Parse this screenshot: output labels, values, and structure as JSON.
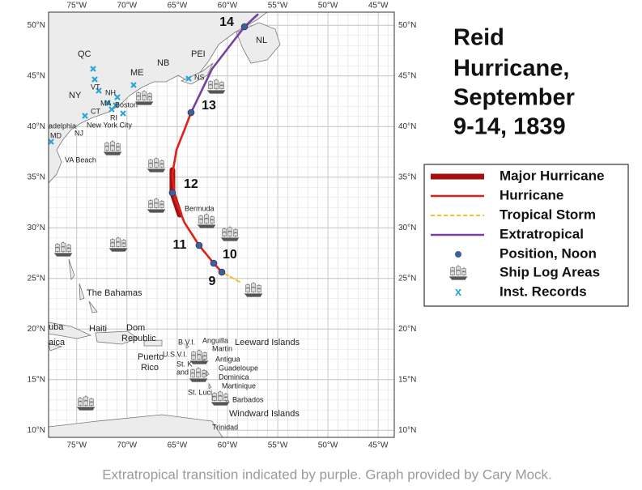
{
  "title_lines": [
    "Reid",
    "Hurricane,",
    "September",
    "9-14, 1839"
  ],
  "caption": "Extratropical transition indicated by purple. Graph provided by Cary Mock.",
  "map": {
    "lon_range": [
      -77.8,
      -43.4
    ],
    "lat_range": [
      9.3,
      51.3
    ],
    "lon_ticks": [
      {
        "value": -75,
        "label": "75°W"
      },
      {
        "value": -70,
        "label": "70°W"
      },
      {
        "value": -65,
        "label": "65°W"
      },
      {
        "value": -60,
        "label": "60°W"
      },
      {
        "value": -55,
        "label": "55°W"
      },
      {
        "value": -50,
        "label": "50°W"
      },
      {
        "value": -45,
        "label": "45°W"
      }
    ],
    "lat_ticks": [
      {
        "value": 50,
        "label": "50°N"
      },
      {
        "value": 45,
        "label": "45°N"
      },
      {
        "value": 40,
        "label": "40°N"
      },
      {
        "value": 35,
        "label": "35°N"
      },
      {
        "value": 30,
        "label": "30°N"
      },
      {
        "value": 25,
        "label": "25°N"
      },
      {
        "value": 20,
        "label": "20°N"
      },
      {
        "value": 15,
        "label": "15°N"
      },
      {
        "value": 10,
        "label": "10°N"
      }
    ],
    "grid": true
  },
  "places": [
    "QC",
    "VT",
    "NH",
    "ME",
    "NB",
    "PEI",
    "NS",
    "NL",
    "NY",
    "MA",
    "CT",
    "RI",
    "NJ",
    "MD",
    "Boston",
    "New York City",
    "adelphia",
    "VA Beach",
    "Bermuda",
    "The Bahamas",
    "uba",
    "Haiti",
    "Dom",
    "Republic",
    "Puerto",
    "Rico",
    "aica",
    "B.V.I.",
    "U.S.V.I.",
    "St. K",
    "and",
    "Anguilla",
    "Martin",
    "Antigua",
    "Guadeloupe",
    "Dominica",
    "Martinique",
    "St. Luci",
    "Barbados",
    "Trinidad",
    "Leeward Islands",
    "Windward Islands"
  ],
  "track": {
    "segments": [
      {
        "name": "Major Hurricane",
        "color": "#a50f0f",
        "line_style": "thick",
        "lon": [
          -65.48,
          -65.48,
          -64.75
        ],
        "lat": [
          35.7,
          33.46,
          31.3
        ]
      },
      {
        "name": "Hurricane",
        "color": "#e0201b",
        "line_style": "solid",
        "lon": [
          -60.56,
          -61.37,
          -62.82,
          -64.27,
          -65.23,
          -65.48,
          -65.07,
          -64.27,
          -63.62
        ],
        "lat": [
          25.62,
          26.5,
          28.26,
          30.5,
          32.9,
          35.3,
          37.7,
          39.7,
          41.38
        ]
      },
      {
        "name": "Tropical Storm",
        "color": "#f2c12e",
        "line_style": "dashed",
        "lon": [
          -58.79,
          -60.56
        ],
        "lat": [
          24.66,
          25.62
        ]
      },
      {
        "name": "Extratropical",
        "color": "#7a3fa0",
        "line_style": "solid",
        "lon": [
          -63.62,
          -61.53,
          -58.3,
          -57.0
        ],
        "lat": [
          41.38,
          45.7,
          49.86,
          51.06
        ]
      }
    ],
    "position_color": "#3c5f9e",
    "positions": [
      {
        "day": 9,
        "lon": -60.56,
        "lat": 25.62
      },
      {
        "day": 10,
        "lon": -61.37,
        "lat": 26.5
      },
      {
        "day": 11,
        "lon": -62.82,
        "lat": 28.26
      },
      {
        "day": 12,
        "lon": -65.48,
        "lat": 33.46
      },
      {
        "day": 13,
        "lon": -63.62,
        "lat": 41.38
      },
      {
        "day": 14,
        "lon": -58.3,
        "lat": 49.86
      }
    ]
  },
  "legend": {
    "position": "Position, Noon",
    "ships": "Ship Log Areas",
    "records": "Inst. Records",
    "records_symbol": "x"
  }
}
